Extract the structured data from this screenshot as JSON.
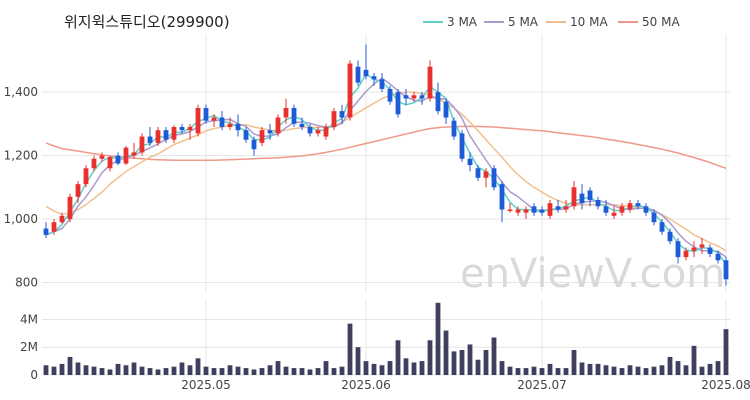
{
  "chart_data": {
    "title": "위지윅스튜디오(299900)",
    "watermark": "enViewV.com",
    "type": "candlestick",
    "colors": {
      "up": "#e8312f",
      "down": "#1e5bd6",
      "volume": "#3f3f5e",
      "grid": "#e6e6e6",
      "ma3": "#5fd0c8",
      "ma5": "#a99bcf",
      "ma10": "#f2c08f",
      "ma50": "#f0998a"
    },
    "legend": [
      {
        "key": "ma3",
        "label": "3 MA"
      },
      {
        "key": "ma5",
        "label": "5 MA"
      },
      {
        "key": "ma10",
        "label": "10 MA"
      },
      {
        "key": "ma50",
        "label": "50 MA"
      }
    ],
    "price_axis": {
      "ticks": [
        800,
        1000,
        1200,
        1400
      ],
      "labels": [
        "800",
        "1,000",
        "1,200",
        "1,400"
      ],
      "range": [
        770,
        1580
      ]
    },
    "volume_axis": {
      "ticks": [
        0,
        2000000,
        4000000
      ],
      "labels": [
        "0",
        "2M",
        "4M"
      ],
      "range": [
        0,
        5400000
      ]
    },
    "x_ticks": [
      {
        "index": 20,
        "label": "2025.05"
      },
      {
        "index": 40,
        "label": "2025.06"
      },
      {
        "index": 62,
        "label": "2025.07"
      },
      {
        "index": 85,
        "label": "2025.08"
      }
    ],
    "candles": [
      [
        970,
        990,
        940,
        950
      ],
      [
        960,
        1000,
        950,
        990
      ],
      [
        990,
        1020,
        985,
        1010
      ],
      [
        1000,
        1080,
        990,
        1070
      ],
      [
        1070,
        1120,
        1050,
        1110
      ],
      [
        1110,
        1170,
        1100,
        1160
      ],
      [
        1160,
        1200,
        1150,
        1190
      ],
      [
        1190,
        1210,
        1180,
        1200
      ],
      [
        1160,
        1200,
        1150,
        1195
      ],
      [
        1200,
        1210,
        1170,
        1175
      ],
      [
        1175,
        1230,
        1170,
        1225
      ],
      [
        1200,
        1240,
        1190,
        1210
      ],
      [
        1210,
        1270,
        1200,
        1260
      ],
      [
        1260,
        1290,
        1230,
        1240
      ],
      [
        1240,
        1290,
        1230,
        1280
      ],
      [
        1280,
        1290,
        1240,
        1250
      ],
      [
        1250,
        1295,
        1240,
        1290
      ],
      [
        1290,
        1300,
        1270,
        1280
      ],
      [
        1280,
        1300,
        1250,
        1290
      ],
      [
        1270,
        1360,
        1260,
        1350
      ],
      [
        1350,
        1360,
        1300,
        1310
      ],
      [
        1310,
        1330,
        1290,
        1320
      ],
      [
        1320,
        1340,
        1280,
        1290
      ],
      [
        1290,
        1320,
        1280,
        1300
      ],
      [
        1300,
        1330,
        1260,
        1280
      ],
      [
        1280,
        1290,
        1240,
        1250
      ],
      [
        1250,
        1260,
        1200,
        1220
      ],
      [
        1240,
        1290,
        1230,
        1280
      ],
      [
        1280,
        1300,
        1250,
        1270
      ],
      [
        1270,
        1330,
        1260,
        1320
      ],
      [
        1320,
        1380,
        1300,
        1350
      ],
      [
        1350,
        1360,
        1290,
        1300
      ],
      [
        1300,
        1320,
        1280,
        1290
      ],
      [
        1290,
        1300,
        1260,
        1270
      ],
      [
        1270,
        1290,
        1260,
        1280
      ],
      [
        1260,
        1300,
        1250,
        1290
      ],
      [
        1290,
        1350,
        1280,
        1340
      ],
      [
        1340,
        1360,
        1300,
        1320
      ],
      [
        1320,
        1500,
        1310,
        1490
      ],
      [
        1480,
        1500,
        1420,
        1430
      ],
      [
        1470,
        1550,
        1440,
        1450
      ],
      [
        1450,
        1460,
        1420,
        1440
      ],
      [
        1440,
        1460,
        1400,
        1410
      ],
      [
        1410,
        1420,
        1360,
        1370
      ],
      [
        1400,
        1410,
        1320,
        1330
      ],
      [
        1390,
        1410,
        1360,
        1380
      ],
      [
        1380,
        1400,
        1370,
        1390
      ],
      [
        1390,
        1400,
        1360,
        1380
      ],
      [
        1380,
        1500,
        1370,
        1480
      ],
      [
        1400,
        1430,
        1330,
        1340
      ],
      [
        1370,
        1380,
        1300,
        1320
      ],
      [
        1310,
        1320,
        1250,
        1260
      ],
      [
        1270,
        1280,
        1180,
        1190
      ],
      [
        1190,
        1210,
        1150,
        1170
      ],
      [
        1160,
        1170,
        1120,
        1130
      ],
      [
        1130,
        1160,
        1100,
        1150
      ],
      [
        1160,
        1170,
        1090,
        1100
      ],
      [
        1110,
        1120,
        990,
        1030
      ],
      [
        1030,
        1050,
        1020,
        1030
      ],
      [
        1020,
        1040,
        1010,
        1030
      ],
      [
        1020,
        1040,
        1000,
        1030
      ],
      [
        1040,
        1050,
        1010,
        1020
      ],
      [
        1030,
        1040,
        1010,
        1020
      ],
      [
        1010,
        1060,
        1000,
        1050
      ],
      [
        1040,
        1060,
        1020,
        1030
      ],
      [
        1030,
        1060,
        1020,
        1040
      ],
      [
        1040,
        1120,
        1030,
        1100
      ],
      [
        1080,
        1110,
        1030,
        1050
      ],
      [
        1090,
        1100,
        1040,
        1060
      ],
      [
        1060,
        1070,
        1030,
        1040
      ],
      [
        1040,
        1060,
        1010,
        1020
      ],
      [
        1010,
        1040,
        1000,
        1020
      ],
      [
        1020,
        1050,
        1010,
        1040
      ],
      [
        1030,
        1060,
        1020,
        1050
      ],
      [
        1050,
        1060,
        1030,
        1040
      ],
      [
        1040,
        1050,
        1010,
        1020
      ],
      [
        1020,
        1030,
        980,
        990
      ],
      [
        990,
        1000,
        950,
        960
      ],
      [
        960,
        970,
        920,
        930
      ],
      [
        930,
        940,
        860,
        880
      ],
      [
        880,
        910,
        870,
        900
      ],
      [
        900,
        930,
        880,
        910
      ],
      [
        910,
        940,
        890,
        920
      ],
      [
        910,
        920,
        880,
        890
      ],
      [
        890,
        900,
        860,
        870
      ],
      [
        870,
        880,
        790,
        810
      ]
    ],
    "volume": [
      700000,
      600000,
      800000,
      1300000,
      900000,
      700000,
      600000,
      500000,
      400000,
      800000,
      700000,
      900000,
      600000,
      500000,
      400000,
      500000,
      600000,
      900000,
      700000,
      1200000,
      600000,
      500000,
      500000,
      700000,
      600000,
      500000,
      400000,
      500000,
      700000,
      1000000,
      600000,
      500000,
      500000,
      400000,
      500000,
      1000000,
      500000,
      600000,
      3700000,
      2000000,
      1000000,
      800000,
      700000,
      1000000,
      2500000,
      1200000,
      900000,
      1000000,
      2500000,
      5200000,
      3200000,
      1700000,
      1800000,
      2200000,
      1100000,
      1800000,
      2700000,
      1000000,
      600000,
      500000,
      500000,
      600000,
      500000,
      800000,
      500000,
      500000,
      1800000,
      900000,
      800000,
      800000,
      700000,
      600000,
      500000,
      700000,
      600000,
      500000,
      600000,
      700000,
      1300000,
      1000000,
      700000,
      2100000,
      600000,
      800000,
      1000000,
      3300000
    ],
    "ma3": [
      950,
      960,
      983,
      1023,
      1063,
      1113,
      1153,
      1183,
      1195,
      1190,
      1198,
      1203,
      1232,
      1237,
      1260,
      1257,
      1273,
      1273,
      1287,
      1307,
      1317,
      1327,
      1307,
      1303,
      1290,
      1277,
      1250,
      1250,
      1257,
      1290,
      1313,
      1323,
      1313,
      1287,
      1280,
      1280,
      1303,
      1317,
      1383,
      1413,
      1457,
      1440,
      1433,
      1407,
      1370,
      1360,
      1367,
      1383,
      1417,
      1400,
      1380,
      1307,
      1257,
      1207,
      1163,
      1150,
      1127,
      1093,
      1053,
      1030,
      1030,
      1027,
      1023,
      1030,
      1033,
      1040,
      1057,
      1063,
      1070,
      1050,
      1040,
      1027,
      1027,
      1037,
      1043,
      1037,
      1017,
      990,
      960,
      923,
      903,
      897,
      910,
      907,
      893,
      857
    ],
    "ma5": [
      950,
      960,
      970,
      1000,
      1040,
      1070,
      1106,
      1146,
      1171,
      1184,
      1193,
      1201,
      1213,
      1224,
      1237,
      1250,
      1264,
      1268,
      1276,
      1290,
      1306,
      1310,
      1312,
      1314,
      1300,
      1292,
      1268,
      1260,
      1262,
      1268,
      1288,
      1304,
      1306,
      1302,
      1294,
      1290,
      1290,
      1302,
      1342,
      1372,
      1402,
      1426,
      1444,
      1426,
      1404,
      1386,
      1374,
      1372,
      1386,
      1380,
      1378,
      1352,
      1318,
      1262,
      1224,
      1186,
      1150,
      1116,
      1086,
      1070,
      1050,
      1030,
      1026,
      1030,
      1030,
      1032,
      1046,
      1052,
      1056,
      1058,
      1052,
      1042,
      1032,
      1030,
      1034,
      1034,
      1028,
      1012,
      988,
      956,
      930,
      912,
      900,
      900,
      898,
      880
    ],
    "ma10": [
      1040,
      1025,
      1015,
      1020,
      1030,
      1045,
      1065,
      1085,
      1110,
      1130,
      1150,
      1165,
      1180,
      1195,
      1205,
      1220,
      1235,
      1245,
      1255,
      1265,
      1278,
      1285,
      1290,
      1295,
      1296,
      1297,
      1290,
      1285,
      1280,
      1278,
      1280,
      1285,
      1288,
      1290,
      1288,
      1290,
      1295,
      1305,
      1320,
      1335,
      1350,
      1365,
      1380,
      1390,
      1395,
      1400,
      1400,
      1395,
      1390,
      1380,
      1365,
      1350,
      1330,
      1305,
      1278,
      1250,
      1222,
      1195,
      1165,
      1140,
      1118,
      1100,
      1085,
      1070,
      1058,
      1050,
      1045,
      1045,
      1045,
      1045,
      1045,
      1045,
      1042,
      1040,
      1036,
      1032,
      1025,
      1014,
      1000,
      984,
      968,
      950,
      938,
      925,
      915,
      900
    ],
    "ma50": [
      1240,
      1230,
      1222,
      1218,
      1214,
      1210,
      1206,
      1202,
      1199,
      1196,
      1194,
      1192,
      1190,
      1188,
      1187,
      1186,
      1185,
      1185,
      1185,
      1185,
      1185,
      1185,
      1186,
      1187,
      1188,
      1189,
      1190,
      1191,
      1192,
      1193,
      1195,
      1197,
      1199,
      1202,
      1206,
      1210,
      1215,
      1220,
      1226,
      1232,
      1238,
      1244,
      1250,
      1256,
      1262,
      1268,
      1274,
      1280,
      1285,
      1288,
      1290,
      1291,
      1292,
      1292,
      1292,
      1291,
      1290,
      1288,
      1286,
      1284,
      1282,
      1280,
      1278,
      1275,
      1272,
      1269,
      1266,
      1263,
      1260,
      1256,
      1252,
      1248,
      1244,
      1240,
      1235,
      1230,
      1225,
      1220,
      1214,
      1208,
      1201,
      1194,
      1186,
      1178,
      1169,
      1160
    ]
  }
}
